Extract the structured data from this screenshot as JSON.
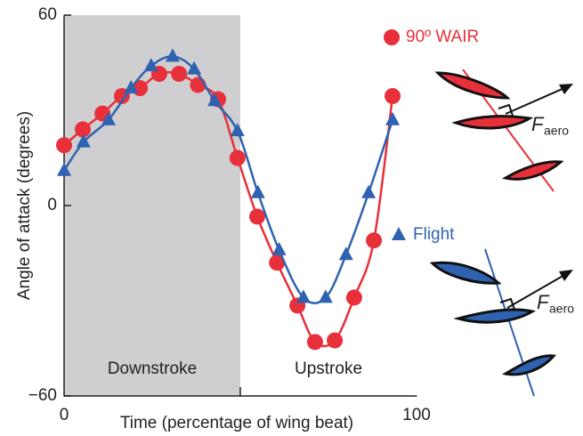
{
  "chart_data": {
    "type": "line",
    "x_label": "Time (percentage of wing beat)",
    "y_label": "Angle of attack (degrees)",
    "xlim": [
      0,
      100
    ],
    "ylim": [
      -60,
      60
    ],
    "xticks": [
      0,
      100
    ],
    "yticks": [
      60,
      0,
      {
        "value": -60,
        "label": "−60"
      }
    ],
    "regions": [
      {
        "label": "Downstroke",
        "start": 0,
        "end": 50,
        "color": "#cfcfd1"
      },
      {
        "label": "Upstroke",
        "start": 50,
        "end": 100
      }
    ],
    "series": [
      {
        "name": "90º WAIR",
        "color": "#e8303a",
        "marker": "circle",
        "x": [
          0,
          5.3,
          10.9,
          16.4,
          21.5,
          27,
          32.6,
          38,
          43.7,
          49.2,
          54.8,
          60.4,
          66.2,
          71.2,
          76.8,
          82.3,
          87.9,
          93.2
        ],
        "values": [
          19,
          24,
          29,
          34.5,
          37,
          41.5,
          41.5,
          38,
          33.5,
          15,
          -3.5,
          -18,
          -31.5,
          -43,
          -42.5,
          -29,
          -11,
          34.5
        ]
      },
      {
        "name": "Flight",
        "color": "#2f62b0",
        "marker": "triangle",
        "x": [
          0,
          5.5,
          12.6,
          19,
          24.7,
          30.8,
          36.9,
          42.7,
          49.2,
          55,
          61,
          67.9,
          74.2,
          80,
          86.4,
          93.2
        ],
        "values": [
          11,
          20,
          27,
          37,
          44,
          47,
          43,
          33,
          23.5,
          4,
          -14,
          -29,
          -29,
          -15.5,
          4,
          27
        ]
      }
    ],
    "force_label": "F",
    "force_subscript": "aero"
  }
}
